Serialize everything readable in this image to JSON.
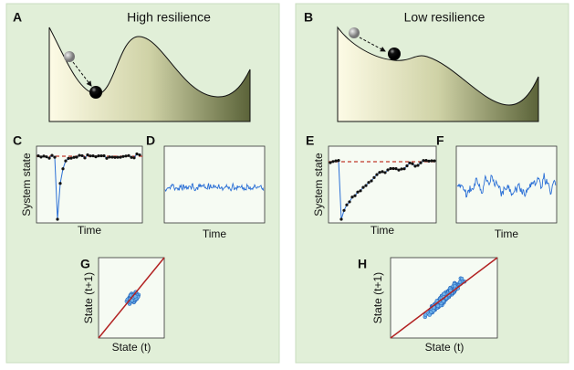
{
  "left": {
    "landscape": {
      "letter": "A",
      "title": "High resilience"
    },
    "timeseries": {
      "letter": "C",
      "y_label": "System state",
      "x_label": "Time"
    },
    "noise": {
      "letter": "D",
      "x_label": "Time"
    },
    "scatter": {
      "letter": "G",
      "y_label": "State (t+1)",
      "x_label": "State (t)"
    }
  },
  "right": {
    "landscape": {
      "letter": "B",
      "title": "Low resilience"
    },
    "timeseries": {
      "letter": "E",
      "y_label": "System state",
      "x_label": "Time"
    },
    "noise": {
      "letter": "F",
      "x_label": "Time"
    },
    "scatter": {
      "letter": "H",
      "y_label": "State (t+1)",
      "x_label": "State (t)"
    }
  }
}
